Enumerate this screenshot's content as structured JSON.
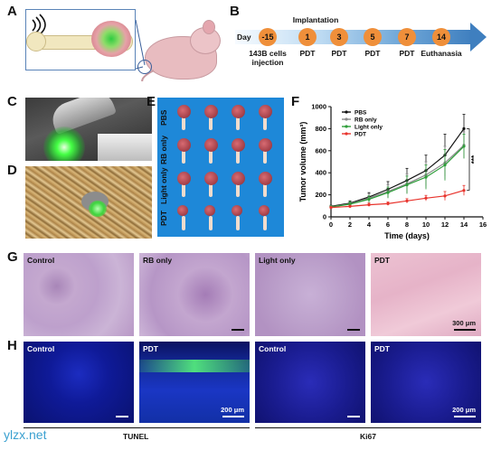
{
  "panels": {
    "a": "A",
    "b": "B",
    "c": "C",
    "d": "D",
    "e": "E",
    "f": "F",
    "g": "G",
    "h": "H"
  },
  "timeline": {
    "day_label": "Day",
    "implantation_label": "Implantation",
    "days": [
      "-15",
      "1",
      "3",
      "5",
      "7",
      "14"
    ],
    "events": [
      "143B cells\ninjection",
      "PDT",
      "PDT",
      "PDT",
      "PDT",
      "Euthanasia"
    ],
    "circle_color": "#ef8f3a",
    "arrow_color": "#3f7fbf"
  },
  "panel_e": {
    "group_labels": [
      "PBS",
      "RB only",
      "Light only",
      "PDT"
    ],
    "background_color": "#1e88d8"
  },
  "chart_data": {
    "type": "line",
    "xlabel": "Time (days)",
    "ylabel": "Tumor volume (mm³)",
    "xlim": [
      0,
      16
    ],
    "ylim": [
      0,
      1000
    ],
    "xticks": [
      0,
      2,
      4,
      6,
      8,
      10,
      12,
      14,
      16
    ],
    "yticks": [
      0,
      200,
      400,
      600,
      800,
      1000
    ],
    "x": [
      0,
      2,
      4,
      6,
      8,
      10,
      12,
      14
    ],
    "series": [
      {
        "name": "PBS",
        "color": "#111111",
        "values": [
          95,
          125,
          180,
          250,
          330,
          420,
          560,
          800
        ],
        "errors": [
          10,
          20,
          40,
          70,
          110,
          140,
          190,
          130
        ]
      },
      {
        "name": "RB only",
        "color": "#8a8a8a",
        "values": [
          92,
          118,
          170,
          230,
          300,
          380,
          490,
          650
        ],
        "errors": [
          10,
          20,
          40,
          60,
          90,
          120,
          150,
          120
        ]
      },
      {
        "name": "Light only",
        "color": "#2e9e3a",
        "values": [
          90,
          115,
          160,
          220,
          290,
          360,
          470,
          640
        ],
        "errors": [
          10,
          20,
          30,
          50,
          80,
          110,
          140,
          110
        ]
      },
      {
        "name": "PDT",
        "color": "#e8332c",
        "values": [
          85,
          95,
          110,
          120,
          145,
          170,
          190,
          240
        ],
        "errors": [
          8,
          10,
          15,
          15,
          20,
          25,
          40,
          45
        ]
      }
    ],
    "annotation": "***",
    "legend": "top-left"
  },
  "panel_g": {
    "labels": [
      "Control",
      "RB only",
      "Light only",
      "PDT"
    ],
    "scale": "300 μm"
  },
  "panel_h": {
    "labels": [
      "Control",
      "PDT",
      "Control",
      "PDT"
    ],
    "scale_left": "200 μm",
    "scale_right": "200 μm",
    "footer_left": "TUNEL",
    "footer_right": "Ki67"
  },
  "watermark": "ylzx.net"
}
